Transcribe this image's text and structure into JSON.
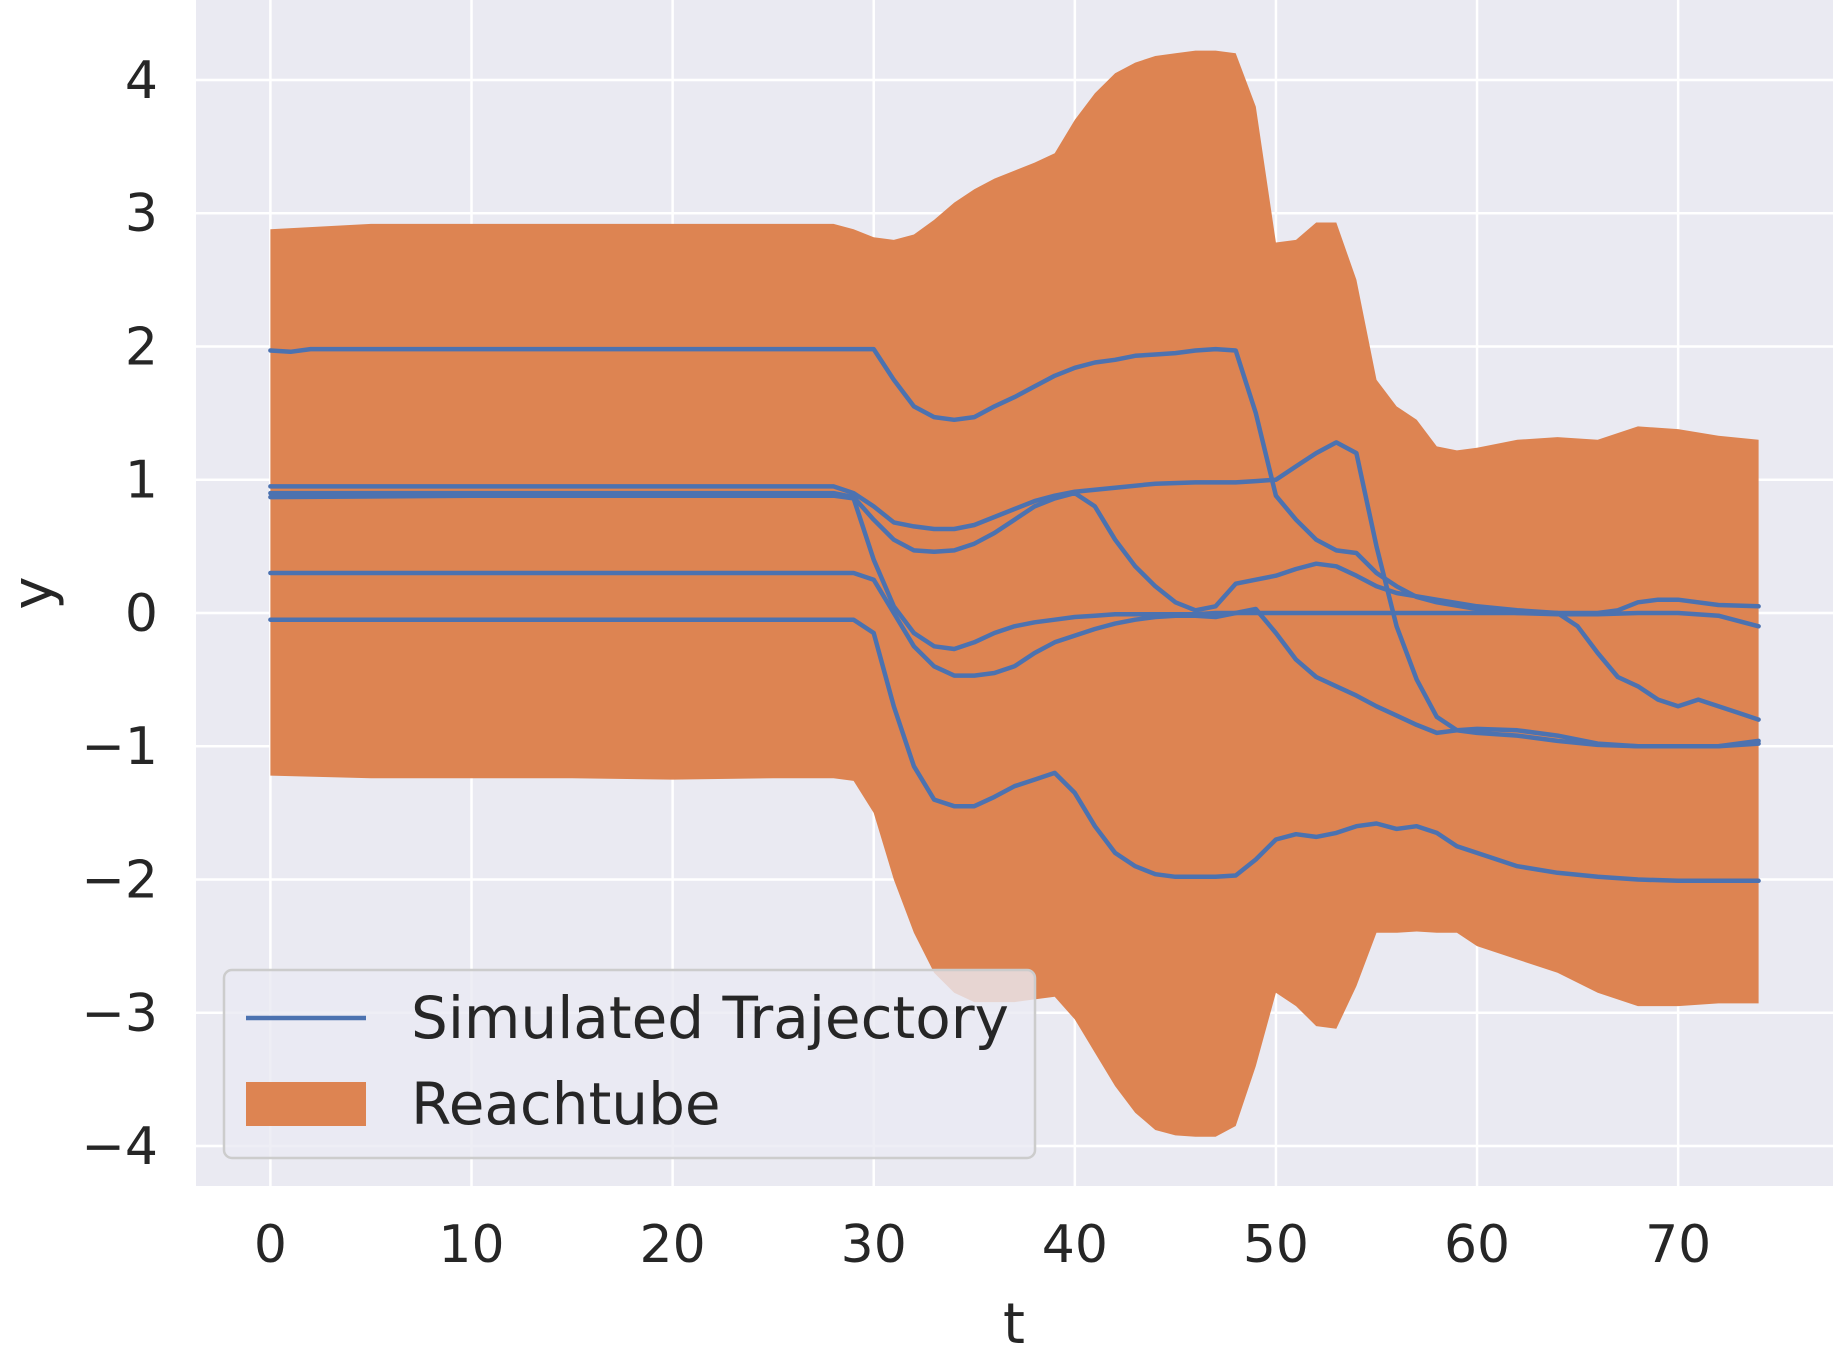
{
  "chart_data": {
    "type": "line",
    "title": "",
    "xlabel": "t",
    "ylabel": "y",
    "xlim": [
      -3.7,
      77.7
    ],
    "ylim": [
      -4.3,
      4.6
    ],
    "xticks": [
      0,
      10,
      20,
      30,
      40,
      50,
      60,
      70
    ],
    "yticks": [
      -4,
      -3,
      -2,
      -1,
      0,
      1,
      2,
      3,
      4
    ],
    "xtick_labels": [
      "0",
      "10",
      "20",
      "30",
      "40",
      "50",
      "60",
      "70"
    ],
    "ytick_labels": [
      "−4",
      "−3",
      "−2",
      "−1",
      "0",
      "1",
      "2",
      "3",
      "4"
    ],
    "grid": true,
    "background_color": "#eaeaf2",
    "legend_position": "lower-left",
    "legend": [
      {
        "label": "Simulated Trajectory",
        "kind": "line",
        "color": "#4c72b0"
      },
      {
        "label": "Reachtube",
        "kind": "patch",
        "color": "#dd8452"
      }
    ],
    "reachtube": {
      "color": "#dd8452",
      "t": [
        0,
        5,
        10,
        15,
        20,
        25,
        28,
        29,
        30,
        31,
        32,
        33,
        34,
        35,
        36,
        37,
        38,
        39,
        40,
        41,
        42,
        43,
        44,
        45,
        46,
        47,
        48,
        49,
        50,
        51,
        52,
        53,
        54,
        55,
        56,
        57,
        58,
        59,
        60,
        62,
        64,
        66,
        68,
        70,
        72,
        74
      ],
      "upper": [
        2.88,
        2.92,
        2.92,
        2.92,
        2.92,
        2.92,
        2.92,
        2.88,
        2.82,
        2.8,
        2.84,
        2.95,
        3.08,
        3.18,
        3.26,
        3.32,
        3.38,
        3.45,
        3.7,
        3.9,
        4.05,
        4.13,
        4.18,
        4.2,
        4.22,
        4.22,
        4.2,
        3.8,
        2.78,
        2.8,
        2.93,
        2.93,
        2.5,
        1.75,
        1.55,
        1.45,
        1.25,
        1.22,
        1.24,
        1.3,
        1.32,
        1.3,
        1.4,
        1.38,
        1.33,
        1.3
      ],
      "lower": [
        -1.22,
        -1.24,
        -1.24,
        -1.24,
        -1.25,
        -1.24,
        -1.24,
        -1.26,
        -1.5,
        -2.0,
        -2.4,
        -2.7,
        -2.85,
        -2.92,
        -2.92,
        -2.92,
        -2.9,
        -2.88,
        -3.05,
        -3.3,
        -3.55,
        -3.75,
        -3.88,
        -3.92,
        -3.93,
        -3.93,
        -3.85,
        -3.4,
        -2.85,
        -2.95,
        -3.1,
        -3.12,
        -2.8,
        -2.4,
        -2.4,
        -2.39,
        -2.4,
        -2.4,
        -2.5,
        -2.6,
        -2.7,
        -2.85,
        -2.95,
        -2.95,
        -2.93,
        -2.93
      ]
    },
    "series": [
      {
        "color": "#4c72b0",
        "t": [
          0,
          1,
          2,
          10,
          17,
          21,
          24,
          26,
          28,
          30,
          31,
          32,
          33,
          34,
          35,
          36,
          37,
          38,
          39,
          40,
          41,
          42,
          43,
          44,
          45,
          46,
          47,
          48,
          49,
          50,
          51,
          52,
          53,
          54,
          55,
          56,
          57,
          58,
          60,
          62,
          64,
          66,
          68,
          70,
          72,
          74
        ],
        "y": [
          1.97,
          1.96,
          1.98,
          1.98,
          1.98,
          1.98,
          1.98,
          1.98,
          1.98,
          1.98,
          1.75,
          1.55,
          1.47,
          1.45,
          1.47,
          1.55,
          1.62,
          1.7,
          1.78,
          1.84,
          1.88,
          1.9,
          1.93,
          1.94,
          1.95,
          1.97,
          1.98,
          1.97,
          1.5,
          0.88,
          0.7,
          0.55,
          0.47,
          0.45,
          0.3,
          0.2,
          0.12,
          0.08,
          0.03,
          0.0,
          -0.01,
          -0.01,
          0.0,
          0.0,
          -0.02,
          -0.1
        ]
      },
      {
        "color": "#4c72b0",
        "t": [
          0,
          10,
          20,
          28,
          29,
          30,
          31,
          32,
          33,
          34,
          35,
          36,
          37,
          38,
          39,
          40,
          42,
          44,
          46,
          48,
          49,
          50,
          51,
          52,
          53,
          54,
          55,
          56,
          57,
          58,
          59,
          60,
          62,
          64,
          66,
          68,
          70,
          72,
          74
        ],
        "y": [
          0.95,
          0.95,
          0.95,
          0.95,
          0.9,
          0.8,
          0.68,
          0.65,
          0.63,
          0.63,
          0.66,
          0.72,
          0.78,
          0.84,
          0.88,
          0.91,
          0.94,
          0.97,
          0.98,
          0.98,
          0.99,
          1.0,
          1.1,
          1.2,
          1.28,
          1.2,
          0.5,
          -0.1,
          -0.5,
          -0.78,
          -0.88,
          -0.9,
          -0.92,
          -0.96,
          -0.99,
          -1.0,
          -1.0,
          -1.0,
          -0.96
        ]
      },
      {
        "color": "#4c72b0",
        "t": [
          0,
          10,
          20,
          28,
          29,
          30,
          31,
          32,
          33,
          34,
          35,
          36,
          37,
          38,
          39,
          40,
          41,
          42,
          43,
          44,
          45,
          46,
          47,
          48,
          49,
          50,
          51,
          52,
          53,
          54,
          55,
          56,
          58,
          60,
          62,
          64,
          65,
          66,
          67,
          68,
          69,
          70,
          71,
          72,
          73,
          74
        ],
        "y": [
          0.9,
          0.9,
          0.9,
          0.9,
          0.87,
          0.7,
          0.55,
          0.47,
          0.46,
          0.47,
          0.52,
          0.6,
          0.7,
          0.8,
          0.86,
          0.9,
          0.8,
          0.55,
          0.35,
          0.2,
          0.08,
          0.02,
          0.05,
          0.22,
          0.25,
          0.28,
          0.33,
          0.37,
          0.35,
          0.28,
          0.2,
          0.15,
          0.1,
          0.05,
          0.02,
          0.0,
          -0.1,
          -0.3,
          -0.48,
          -0.55,
          -0.65,
          -0.7,
          -0.65,
          -0.7,
          -0.75,
          -0.8
        ]
      },
      {
        "color": "#4c72b0",
        "t": [
          0,
          10,
          20,
          28,
          29,
          30,
          31,
          32,
          33,
          34,
          35,
          36,
          37,
          38,
          39,
          40,
          41,
          42,
          43,
          44,
          45,
          46,
          47,
          48,
          49,
          50,
          51,
          52,
          53,
          54,
          55,
          56,
          57,
          58,
          59,
          60,
          62,
          64,
          66,
          67,
          68,
          69,
          70,
          72,
          74
        ],
        "y": [
          0.87,
          0.88,
          0.88,
          0.88,
          0.86,
          0.4,
          0.05,
          -0.15,
          -0.25,
          -0.27,
          -0.22,
          -0.15,
          -0.1,
          -0.07,
          -0.05,
          -0.03,
          -0.02,
          -0.01,
          -0.01,
          -0.01,
          -0.01,
          -0.01,
          0.0,
          0.0,
          0.0,
          0.0,
          0.0,
          0.0,
          0.0,
          0.0,
          0.0,
          0.0,
          0.0,
          0.0,
          0.0,
          0.0,
          0.0,
          0.0,
          0.0,
          0.02,
          0.08,
          0.1,
          0.1,
          0.06,
          0.05
        ]
      },
      {
        "color": "#4c72b0",
        "t": [
          0,
          10,
          20,
          28,
          29,
          30,
          31,
          32,
          33,
          34,
          35,
          36,
          37,
          38,
          39,
          40,
          41,
          42,
          43,
          44,
          45,
          46,
          47,
          48,
          49,
          50,
          51,
          52,
          53,
          54,
          55,
          56,
          57,
          58,
          59,
          60,
          62,
          64,
          66,
          68,
          70,
          72,
          74
        ],
        "y": [
          0.3,
          0.3,
          0.3,
          0.3,
          0.3,
          0.25,
          0.0,
          -0.25,
          -0.4,
          -0.47,
          -0.47,
          -0.45,
          -0.4,
          -0.3,
          -0.22,
          -0.17,
          -0.12,
          -0.08,
          -0.05,
          -0.03,
          -0.02,
          -0.02,
          -0.03,
          0.0,
          0.03,
          -0.15,
          -0.35,
          -0.48,
          -0.55,
          -0.62,
          -0.7,
          -0.77,
          -0.84,
          -0.9,
          -0.88,
          -0.87,
          -0.88,
          -0.92,
          -0.98,
          -1.0,
          -1.0,
          -1.0,
          -0.98
        ]
      },
      {
        "color": "#4c72b0",
        "t": [
          0,
          10,
          20,
          28,
          29,
          30,
          31,
          32,
          33,
          34,
          35,
          36,
          37,
          38,
          39,
          40,
          41,
          42,
          43,
          44,
          45,
          46,
          47,
          48,
          49,
          50,
          51,
          52,
          53,
          54,
          55,
          56,
          57,
          58,
          59,
          60,
          62,
          64,
          66,
          68,
          70,
          72,
          74
        ],
        "y": [
          -0.05,
          -0.05,
          -0.05,
          -0.05,
          -0.05,
          -0.15,
          -0.7,
          -1.15,
          -1.4,
          -1.45,
          -1.45,
          -1.38,
          -1.3,
          -1.25,
          -1.2,
          -1.35,
          -1.6,
          -1.8,
          -1.9,
          -1.96,
          -1.98,
          -1.98,
          -1.98,
          -1.97,
          -1.85,
          -1.7,
          -1.66,
          -1.68,
          -1.65,
          -1.6,
          -1.58,
          -1.62,
          -1.6,
          -1.65,
          -1.75,
          -1.8,
          -1.9,
          -1.95,
          -1.98,
          -2.0,
          -2.01,
          -2.01,
          -2.01
        ]
      }
    ]
  }
}
